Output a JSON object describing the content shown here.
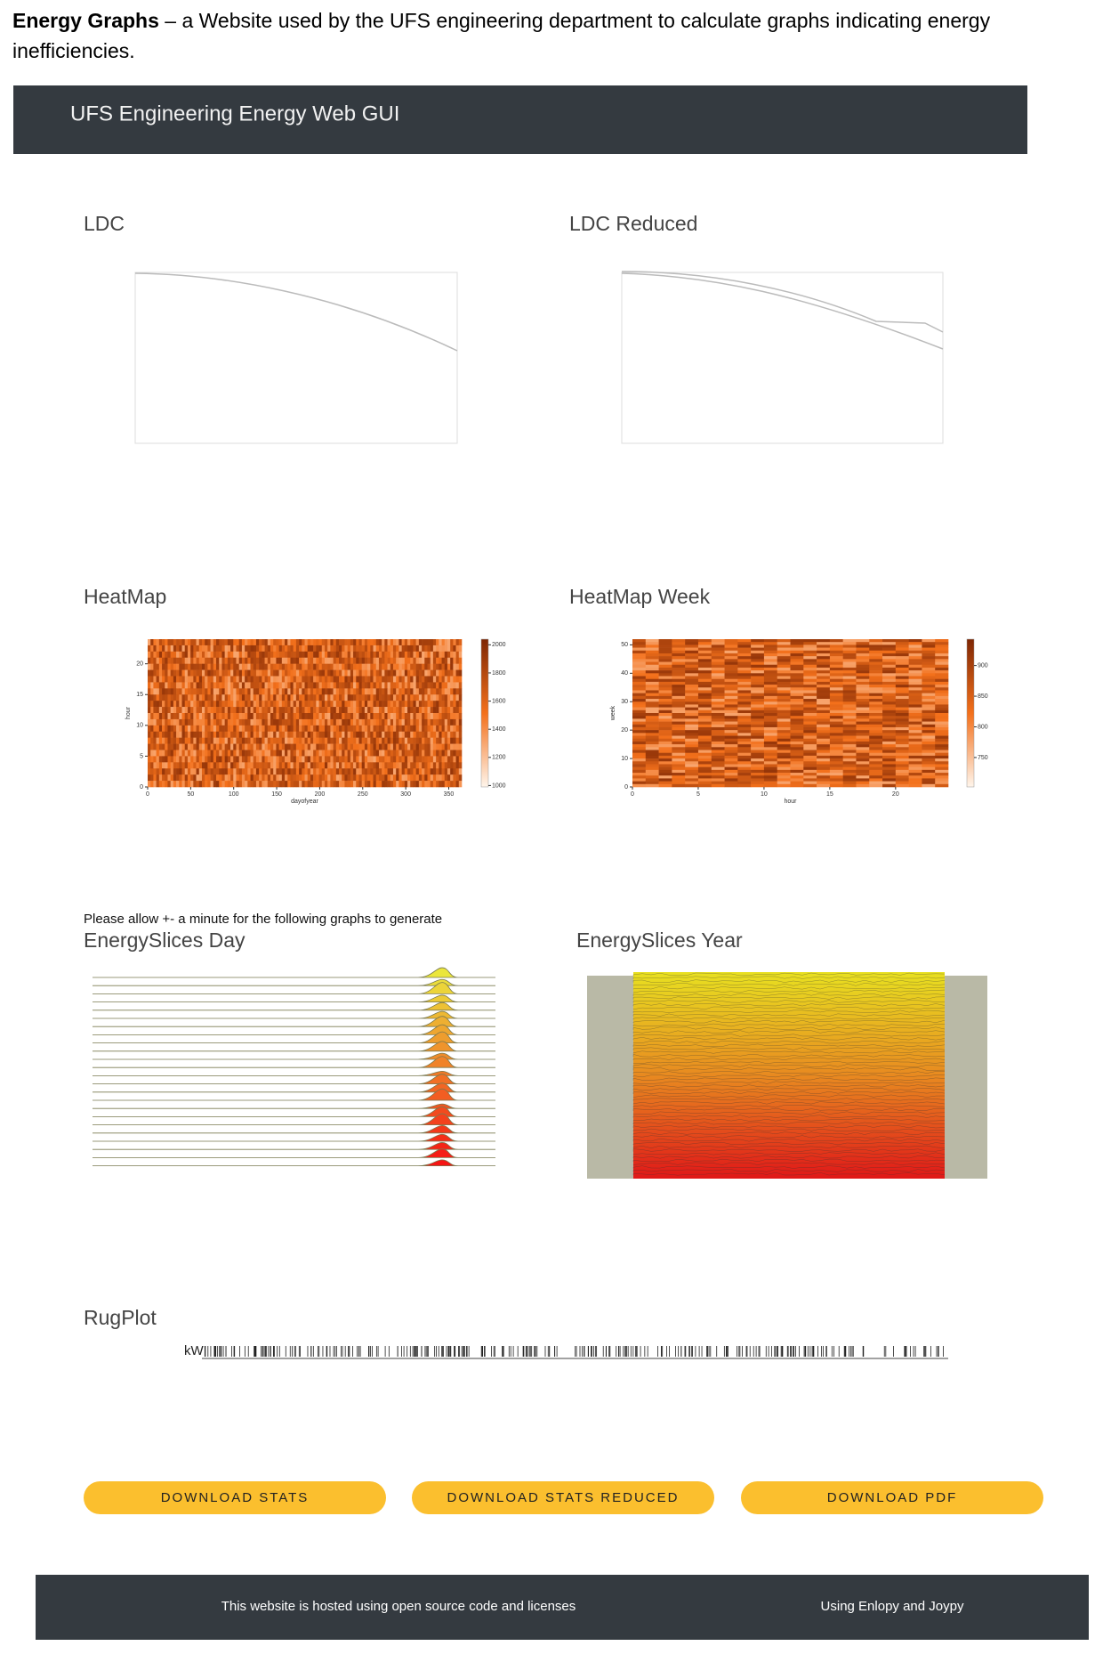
{
  "caption": {
    "bold": "Energy Graphs",
    "text": " – a Website used by the UFS engineering department to calculate graphs indicating energy inefficiencies."
  },
  "header": {
    "title": "UFS Engineering Energy Web GUI"
  },
  "ldc": {
    "title": "LDC"
  },
  "ldc_reduced": {
    "title": "LDC Reduced"
  },
  "heatmap": {
    "title": "HeatMap",
    "xlabel": "dayofyear",
    "ylabel": "hour",
    "xlim": [
      0,
      365
    ],
    "xticks": [
      0,
      50,
      100,
      150,
      200,
      250,
      300,
      350
    ],
    "ylim": [
      0,
      24
    ],
    "yticks": [
      0,
      5,
      10,
      15,
      20
    ],
    "clim": [
      990,
      2040
    ],
    "cticks": [
      1000,
      1200,
      1400,
      1600,
      1800,
      2000
    ]
  },
  "heatmap_week": {
    "title": "HeatMap Week",
    "xlabel": "hour",
    "ylabel": "week",
    "xlim": [
      0,
      24
    ],
    "xticks": [
      0,
      5,
      10,
      15,
      20
    ],
    "ylim": [
      0,
      52
    ],
    "yticks": [
      0,
      10,
      20,
      30,
      40,
      50
    ],
    "clim": [
      702,
      943
    ],
    "cticks": [
      750,
      800,
      850,
      900
    ]
  },
  "note": "Please allow +- a minute for the following graphs to generate",
  "slices_day": {
    "title": "EnergySlices Day"
  },
  "slices_year": {
    "title": "EnergySlices Year"
  },
  "rugplot": {
    "title": "RugPlot",
    "ylabel": "kW"
  },
  "buttons": [
    "DOWNLOAD STATS",
    "DOWNLOAD STATS REDUCED",
    "DOWNLOAD PDF"
  ],
  "footer": {
    "left": "This website is hosted using open source code and licenses",
    "right": "Using Enlopy and Joypy"
  }
}
